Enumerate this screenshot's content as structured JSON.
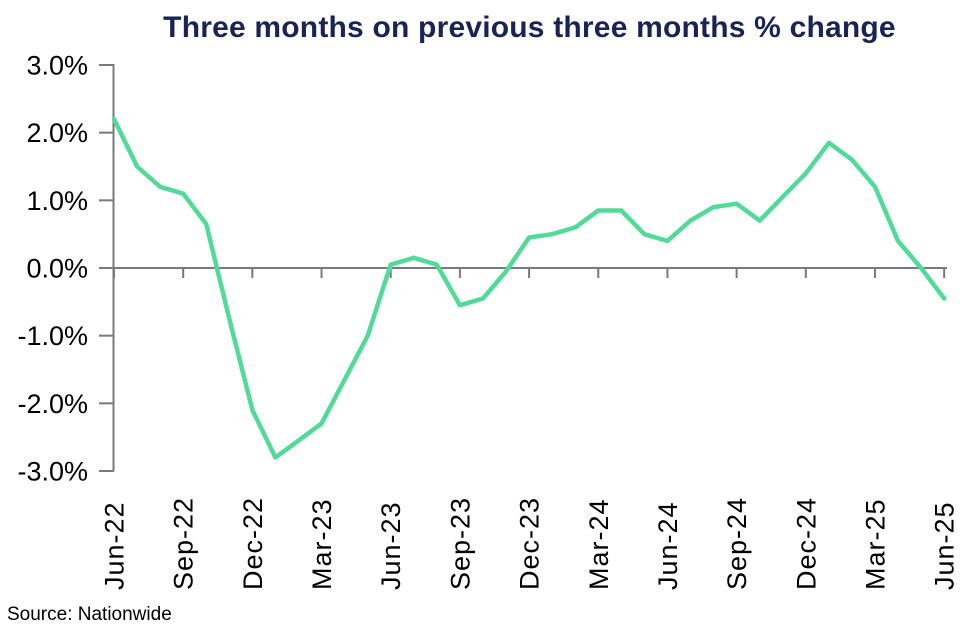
{
  "page": {
    "title": "Three months on previous three months % change",
    "source": "Source: Nationwide"
  },
  "colors": {
    "line": "#52DA98",
    "title": "#192355",
    "axis": "#7A7A7A",
    "tick_label": "#000000",
    "background": "#FFFFFF"
  },
  "chart_data": {
    "type": "line",
    "title": "Three months on previous three months % change",
    "xlabel": "",
    "ylabel": "",
    "unit": "%",
    "ylim": [
      -3.0,
      3.0
    ],
    "y_tick_step": 1.0,
    "y_ticks": [
      {
        "value": 3.0,
        "label": "3.0%"
      },
      {
        "value": 2.0,
        "label": "2.0%"
      },
      {
        "value": 1.0,
        "label": "1.0%"
      },
      {
        "value": 0.0,
        "label": "0.0%"
      },
      {
        "value": -1.0,
        "label": "-1.0%"
      },
      {
        "value": -2.0,
        "label": "-2.0%"
      },
      {
        "value": -3.0,
        "label": "-3.0%"
      }
    ],
    "x_tick_labels": [
      "Jun-22",
      "Sep-22",
      "Dec-22",
      "Mar-23",
      "Jun-23",
      "Sep-23",
      "Dec-23",
      "Mar-24",
      "Jun-24",
      "Sep-24",
      "Dec-24",
      "Mar-25",
      "Jun-25"
    ],
    "x_tick_every": 3,
    "x": [
      "Jun-22",
      "Jul-22",
      "Aug-22",
      "Sep-22",
      "Oct-22",
      "Nov-22",
      "Dec-22",
      "Jan-23",
      "Feb-23",
      "Mar-23",
      "Apr-23",
      "May-23",
      "Jun-23",
      "Jul-23",
      "Aug-23",
      "Sep-23",
      "Oct-23",
      "Nov-23",
      "Dec-23",
      "Jan-24",
      "Feb-24",
      "Mar-24",
      "Apr-24",
      "May-24",
      "Jun-24",
      "Jul-24",
      "Aug-24",
      "Sep-24",
      "Oct-24",
      "Nov-24",
      "Dec-24",
      "Jan-25",
      "Feb-25",
      "Mar-25",
      "Apr-25",
      "May-25",
      "Jun-25"
    ],
    "series": [
      {
        "name": "Three months on previous three months % change",
        "values": [
          2.2,
          1.5,
          1.2,
          1.1,
          0.65,
          -0.75,
          -2.1,
          -2.8,
          -2.55,
          -2.3,
          -1.65,
          -1.0,
          0.05,
          0.15,
          0.05,
          -0.55,
          -0.45,
          -0.05,
          0.45,
          0.5,
          0.6,
          0.85,
          0.85,
          0.5,
          0.4,
          0.7,
          0.9,
          0.95,
          0.7,
          1.05,
          1.4,
          1.85,
          1.6,
          1.2,
          0.4,
          0.0,
          -0.45
        ]
      }
    ],
    "legend_position": "none",
    "grid": "zero-line-only",
    "source": "Source: Nationwide"
  }
}
